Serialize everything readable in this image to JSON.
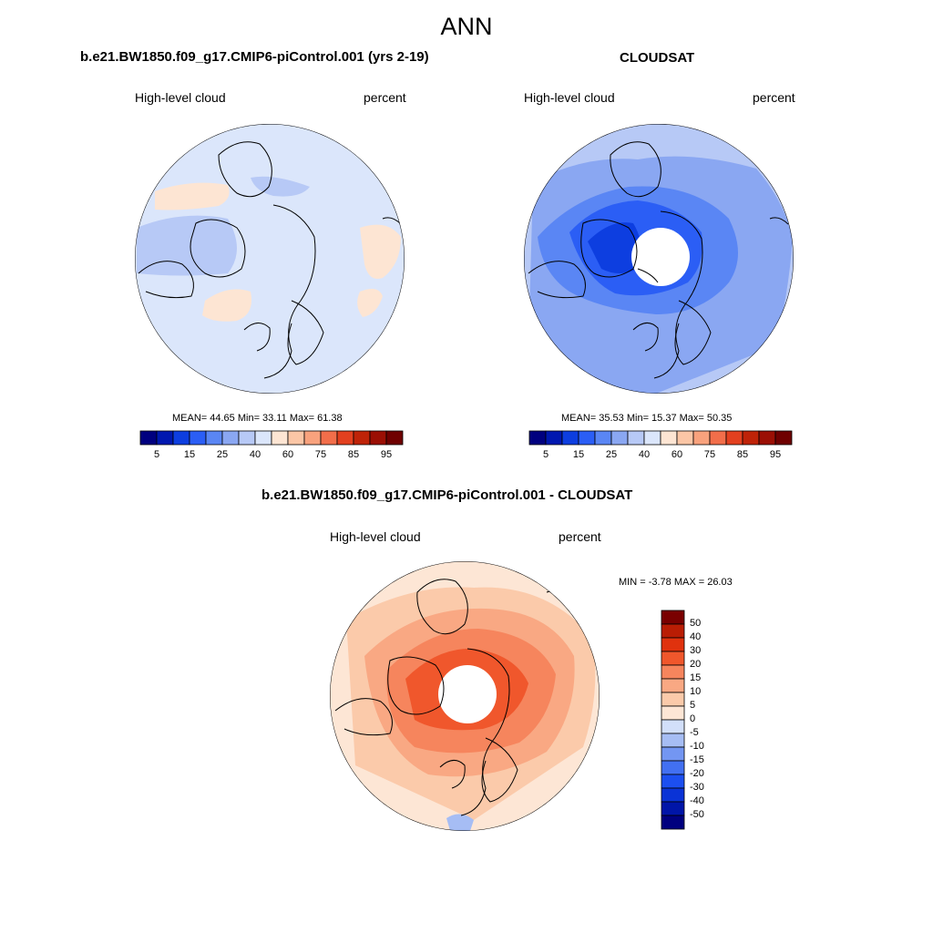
{
  "title": "ANN",
  "colors": {
    "abs_scale": [
      "#00007f",
      "#0018b0",
      "#0d3ee0",
      "#2b5ef5",
      "#5a86f4",
      "#8aa7f2",
      "#b7c9f6",
      "#dbe6fb",
      "#fde5d3",
      "#fbc6a6",
      "#f8a27d",
      "#f26e4a",
      "#e3401f",
      "#bf2308",
      "#9b0f04",
      "#6f0000"
    ],
    "diff_scale": [
      "#00007f",
      "#0015a8",
      "#0a33d6",
      "#1c4ff0",
      "#4270f2",
      "#7396f2",
      "#a6bdf4",
      "#d2dffa",
      "#fde6d5",
      "#fbcaaa",
      "#f9a883",
      "#f6855d",
      "#f0572c",
      "#e0320e",
      "#b91d04",
      "#7a0000"
    ]
  },
  "panels": {
    "model": {
      "title": "b.e21.BW1850.f09_g17.CMIP6-piControl.001 (yrs 2-19)",
      "left_label": "High-level cloud",
      "right_label": "percent",
      "stats": "MEAN=  44.65  Min=  33.11  Max=  61.38",
      "field_level": "light-blue with light-orange patches"
    },
    "obs": {
      "title": "CLOUDSAT",
      "left_label": "High-level cloud",
      "right_label": "percent",
      "stats": "MEAN=  35.53  Min=  15.37  Max=  50.35"
    },
    "diff": {
      "title": "b.e21.BW1850.f09_g17.CMIP6-piControl.001 - CLOUDSAT",
      "left_label": "High-level cloud",
      "right_label": "percent",
      "stats": "MIN =  -3.78 MAX =  26.03"
    }
  },
  "colorbars": {
    "abs_ticks": [
      "5",
      "15",
      "25",
      "40",
      "60",
      "75",
      "85",
      "95"
    ],
    "diff_ticks": [
      "50",
      "40",
      "30",
      "20",
      "15",
      "10",
      "5",
      "0",
      "-5",
      "-10",
      "-15",
      "-20",
      "-30",
      "-40",
      "-50"
    ]
  }
}
